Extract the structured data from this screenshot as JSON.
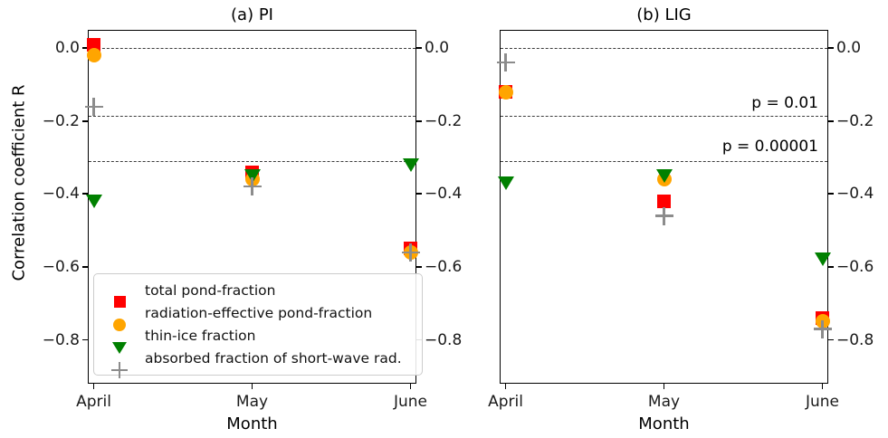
{
  "figure": {
    "ylabel": "Correlation coefficient R"
  },
  "chart_data": [
    {
      "type": "scatter",
      "title": "(a) PI",
      "xlabel": "Month",
      "ylabel": "Correlation coefficient R",
      "categories": [
        "April",
        "May",
        "June"
      ],
      "ylim": [
        -0.92,
        0.05
      ],
      "ytick_values": [
        0.0,
        -0.2,
        -0.4,
        -0.6,
        -0.8
      ],
      "ytick_labels": [
        "0.0",
        "−0.2",
        "−0.4",
        "−0.6",
        "−0.8"
      ],
      "hlines": [
        0.0,
        -0.187,
        -0.31
      ],
      "grid": false,
      "y_labels_left": true,
      "y_labels_right": true,
      "legend_position": "lower left",
      "show_legend": true,
      "annotations": [],
      "series": [
        {
          "name": "total pond-fraction",
          "marker": "square",
          "color": "#ff0000",
          "values": [
            0.01,
            -0.34,
            -0.55
          ]
        },
        {
          "name": "radiation-effective pond-fraction",
          "marker": "circle",
          "color": "#ffa500",
          "values": [
            -0.02,
            -0.36,
            -0.56
          ]
        },
        {
          "name": "thin-ice fraction",
          "marker": "triangle-down",
          "color": "#008000",
          "values": [
            -0.42,
            -0.35,
            -0.32
          ]
        },
        {
          "name": "absorbed fraction of short-wave rad.",
          "marker": "plus",
          "color": "#8c8c8c",
          "values": [
            -0.16,
            -0.38,
            -0.56
          ]
        }
      ]
    },
    {
      "type": "scatter",
      "title": "(b) LIG",
      "xlabel": "Month",
      "categories": [
        "April",
        "May",
        "June"
      ],
      "ylim": [
        -0.92,
        0.05
      ],
      "ytick_values": [
        0.0,
        -0.2,
        -0.4,
        -0.6,
        -0.8
      ],
      "ytick_labels": [
        "0.0",
        "−0.2",
        "−0.4",
        "−0.6",
        "−0.8"
      ],
      "hlines": [
        0.0,
        -0.187,
        -0.31
      ],
      "grid": false,
      "y_labels_left": false,
      "y_labels_right": true,
      "show_legend": false,
      "annotations": [
        {
          "text": "p = 0.01",
          "y": -0.155
        },
        {
          "text": "p = 0.00001",
          "y": -0.275
        }
      ],
      "series": [
        {
          "name": "total pond-fraction",
          "marker": "square",
          "color": "#ff0000",
          "values": [
            -0.12,
            -0.42,
            -0.74
          ]
        },
        {
          "name": "radiation-effective pond-fraction",
          "marker": "circle",
          "color": "#ffa500",
          "values": [
            -0.12,
            -0.36,
            -0.75
          ]
        },
        {
          "name": "thin-ice fraction",
          "marker": "triangle-down",
          "color": "#008000",
          "values": [
            -0.37,
            -0.35,
            -0.58
          ]
        },
        {
          "name": "absorbed fraction of short-wave rad.",
          "marker": "plus",
          "color": "#8c8c8c",
          "values": [
            -0.04,
            -0.46,
            -0.77
          ]
        }
      ]
    }
  ]
}
